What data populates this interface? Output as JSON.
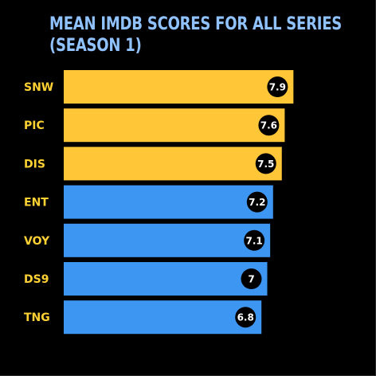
{
  "chart_data": {
    "type": "bar",
    "orientation": "horizontal",
    "title_lines": [
      "MEAN IMDB SCORES FOR ALL SERIES",
      "(SEASON 1)"
    ],
    "categories": [
      "SNW",
      "PIC",
      "DIS",
      "ENT",
      "VOY",
      "DS9",
      "TNG"
    ],
    "values": [
      7.9,
      7.6,
      7.5,
      7.2,
      7.1,
      7,
      6.8
    ],
    "value_labels": [
      "7.9",
      "7.6",
      "7.5",
      "7.2",
      "7.1",
      "7",
      "6.8"
    ],
    "bar_colors": [
      "#ffc737",
      "#ffc737",
      "#ffc737",
      "#3d97f2",
      "#3d97f2",
      "#3d97f2",
      "#3d97f2"
    ],
    "xlim": [
      0,
      8
    ],
    "grid": false,
    "legend": "none"
  },
  "colors": {
    "background": "#000000",
    "title": "#8fc2ff",
    "category_label": "#ffd133",
    "value_badge": "#000000",
    "value_text": "#ffffff"
  }
}
